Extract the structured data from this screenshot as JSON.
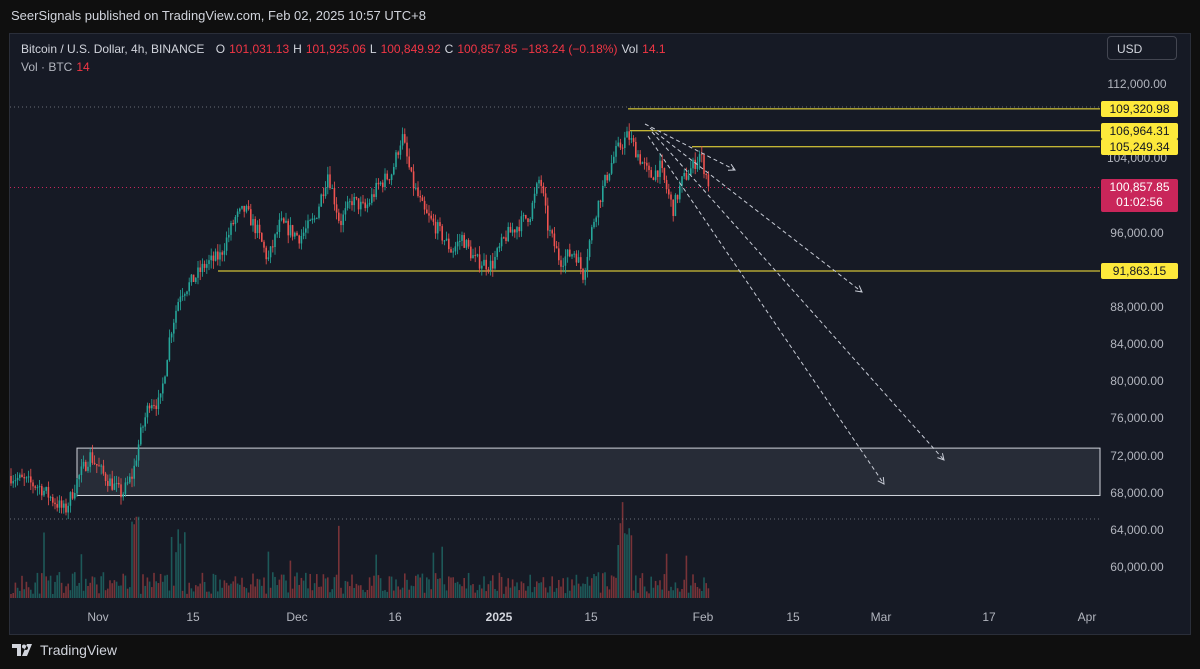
{
  "header": {
    "publisher": "SeerSignals published on TradingView.com, Feb 02, 2025 10:57 UTC+8"
  },
  "legend": {
    "symbol": "Bitcoin / U.S. Dollar, 4h, BINANCE",
    "o_label": "O",
    "o_value": "101,031.13",
    "h_label": "H",
    "h_value": "101,925.06",
    "l_label": "L",
    "l_value": "100,849.92",
    "c_label": "C",
    "c_value": "100,857.85",
    "change": "−183.24 (−0.18%)",
    "vol_label": "Vol",
    "vol_value": "14.1",
    "vol_row_label": "Vol · BTC",
    "vol_row_value": "14"
  },
  "currency": "USD",
  "price_axis": {
    "ticks": [
      "112,000.00",
      "104,000.00",
      "96,000.00",
      "88,000.00",
      "84,000.00",
      "80,000.00",
      "76,000.00",
      "72,000.00",
      "68,000.00",
      "64,000.00",
      "60,000.00"
    ]
  },
  "levels": [
    {
      "label": "109,320.98",
      "price": 109320.98,
      "style": "yellow"
    },
    {
      "label": "106,964.31",
      "price": 106964.31,
      "style": "yellow"
    },
    {
      "label": "105,249.34",
      "price": 105249.34,
      "style": "yellow"
    },
    {
      "label": "91,863.15",
      "price": 91863.15,
      "style": "yellow"
    }
  ],
  "current_price": {
    "label": "100,857.85",
    "countdown": "01:02:56",
    "price": 100857.85
  },
  "time_axis": {
    "ticks": [
      {
        "label": "Nov",
        "bold": false
      },
      {
        "label": "15",
        "bold": false
      },
      {
        "label": "Dec",
        "bold": false
      },
      {
        "label": "16",
        "bold": false
      },
      {
        "label": "2025",
        "bold": true
      },
      {
        "label": "15",
        "bold": false
      },
      {
        "label": "Feb",
        "bold": false
      },
      {
        "label": "15",
        "bold": false
      },
      {
        "label": "Mar",
        "bold": false
      },
      {
        "label": "17",
        "bold": false
      },
      {
        "label": "Apr",
        "bold": false
      }
    ]
  },
  "demand_zone": {
    "top": 72800,
    "bottom": 67700
  },
  "colors": {
    "up": "#26a69a",
    "down": "#ef5350",
    "level": "#fde93b",
    "current": "#c9265a"
  },
  "footer": {
    "brand": "TradingView"
  }
}
